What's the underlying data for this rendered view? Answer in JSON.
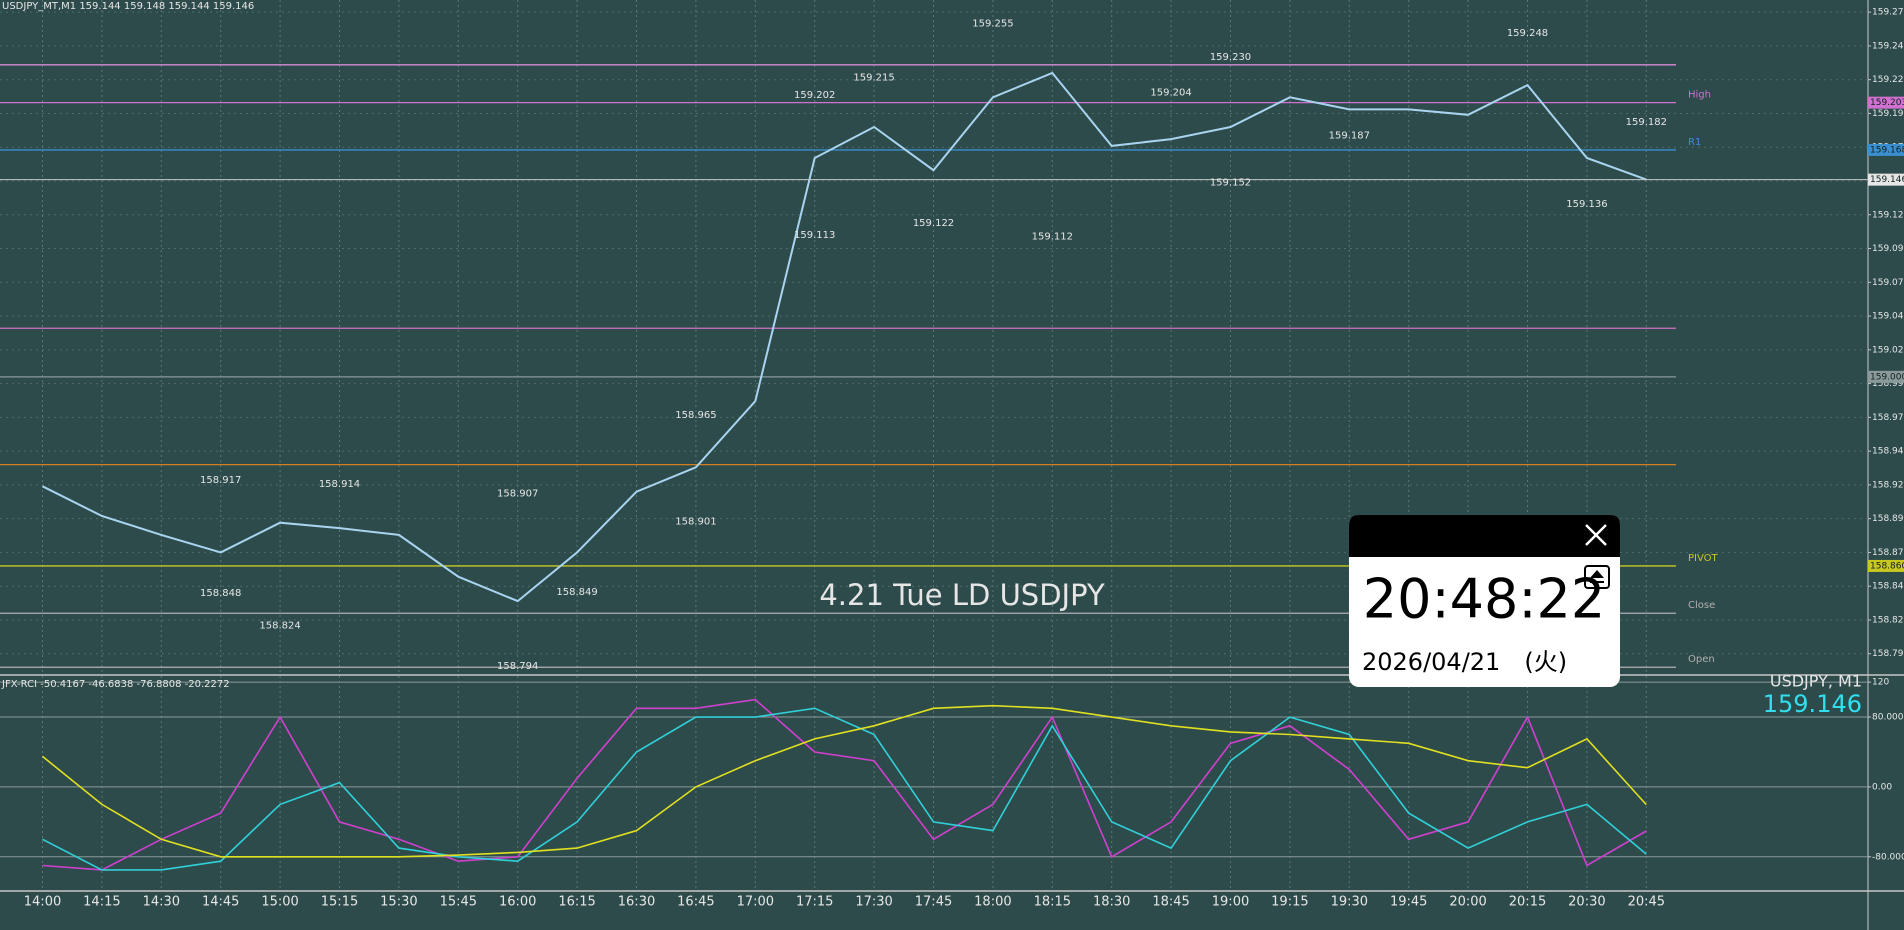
{
  "chart_data": [
    {
      "type": "line",
      "title": "USDJPY_MT,M1  159.144 159.148 159.144 159.146",
      "categories": [
        "14:00",
        "14:15",
        "14:30",
        "14:45",
        "15:00",
        "15:15",
        "15:30",
        "15:45",
        "16:00",
        "16:15",
        "16:30",
        "16:45",
        "17:00",
        "17:15",
        "17:30",
        "17:45",
        "18:00",
        "18:15",
        "18:30",
        "18:45",
        "19:00",
        "19:15",
        "19:30",
        "19:45",
        "20:00",
        "20:15",
        "20:30",
        "20:45"
      ],
      "values": [
        158.919,
        158.897,
        158.883,
        158.87,
        158.892,
        158.888,
        158.883,
        158.852,
        158.834,
        158.87,
        158.915,
        158.933,
        158.982,
        159.162,
        159.185,
        159.153,
        159.207,
        159.225,
        159.171,
        159.176,
        159.185,
        159.207,
        159.198,
        159.198,
        159.194,
        159.216,
        159.162,
        159.146
      ],
      "color": "#a8d4f0",
      "ylim": [
        158.78,
        159.279
      ],
      "yticks": [
        {
          "value": 159.27,
          "label": "159.270"
        },
        159.245,
        {
          "value": 159.22,
          "label": "159.220"
        },
        159.195,
        {
          "value": 159.17,
          "label": "159.170"
        },
        159.145,
        {
          "value": 159.12,
          "label": "159.120"
        },
        159.095,
        {
          "value": 159.07,
          "label": "159.070"
        },
        159.045,
        {
          "value": 159.02,
          "label": "159.020"
        },
        158.995,
        {
          "value": 158.97,
          "label": "158.970"
        },
        158.945,
        {
          "value": 158.92,
          "label": "158.920"
        },
        158.895,
        {
          "value": 158.87,
          "label": "158.870"
        },
        158.845,
        {
          "value": 158.82,
          "label": "158.820"
        },
        158.795
      ],
      "grid": true,
      "annotations": [
        {
          "x": "14:45",
          "value": 158.848
        },
        {
          "x": "14:45",
          "value": 158.917
        },
        {
          "x": "15:00",
          "value": 158.824
        },
        {
          "x": "15:15",
          "value": 158.914
        },
        {
          "x": "16:00",
          "value": 158.794
        },
        {
          "x": "16:00",
          "value": 158.907
        },
        {
          "x": "16:15",
          "value": 158.849
        },
        {
          "x": "16:45",
          "value": 158.965
        },
        {
          "x": "16:45",
          "value": 158.901
        },
        {
          "x": "17:15",
          "value": 159.202
        },
        {
          "x": "17:30",
          "value": 159.215
        },
        {
          "x": "17:15",
          "value": 159.113
        },
        {
          "x": "17:45",
          "value": 159.122
        },
        {
          "x": "18:00",
          "value": 159.255
        },
        {
          "x": "18:15",
          "value": 159.112
        },
        {
          "x": "18:45",
          "value": 159.204
        },
        {
          "x": "19:00",
          "value": 159.23,
          "label": "159.230"
        },
        {
          "x": "19:00",
          "value": 159.152
        },
        {
          "x": "19:30",
          "value": 159.187
        },
        {
          "x": "20:15",
          "value": 159.248
        },
        {
          "x": "20:30",
          "value": 159.136
        },
        {
          "x": "20:45",
          "value": 159.182
        }
      ],
      "levels": [
        {
          "value": 159.231,
          "color": "#d88ad8"
        },
        {
          "name": "High",
          "value": 159.203,
          "color": "#d070d0"
        },
        {
          "name": "R1",
          "value": 159.168,
          "color": "#3a8fd0"
        },
        {
          "value": 159.036,
          "color": "#d070c0"
        },
        {
          "value": 159.0,
          "label": "159.000",
          "color": "#8a9a9a"
        },
        {
          "value": 158.935,
          "color": "#d08020"
        },
        {
          "name": "PIVOT",
          "value": 158.86,
          "label": "158.860",
          "color": "#c8c820"
        },
        {
          "name": "Close",
          "value": 158.825,
          "color": "#b0b0b0"
        },
        {
          "name": "Open",
          "value": 158.785,
          "color": "#b0b0b0"
        }
      ]
    },
    {
      "type": "line",
      "title": "JFX-RCI -50.4167 -46.6838 -76.8808 -20.2272",
      "ylim": [
        -118,
        127
      ],
      "yticks": [
        120,
        {
          "value": 80,
          "label": "80.0000"
        },
        {
          "value": 0,
          "label": "0.00"
        },
        {
          "value": -80,
          "label": "-80.0000"
        }
      ],
      "series": [
        {
          "color": "#d040d0",
          "values": [
            -90,
            -95,
            -60,
            -30,
            80,
            -40,
            -60,
            -85,
            -80,
            10,
            90,
            90,
            100,
            40,
            30,
            -60,
            -20,
            80,
            -80,
            -40,
            50,
            70,
            20,
            -60,
            -40,
            80,
            -90,
            -50.4167
          ]
        },
        {
          "color": "#30d0d8",
          "values": [
            -60,
            -95,
            -95,
            -85,
            -20,
            5,
            -70,
            -80,
            -85,
            -40,
            40,
            80,
            80,
            90,
            60,
            -40,
            -50,
            70,
            -40,
            -70,
            30,
            80,
            60,
            -30,
            -70,
            -40,
            -20,
            -76.8808
          ]
        },
        {
          "color": "#e0e020",
          "values": [
            35,
            -20,
            -60,
            -80,
            -80,
            -80,
            -80,
            -78,
            -75,
            -70,
            -50,
            0,
            30,
            55,
            70,
            90,
            93,
            90,
            80,
            70,
            63,
            60,
            55,
            50,
            30,
            22,
            55,
            -20.2272
          ]
        }
      ]
    }
  ],
  "panel": {
    "symbol": "USDJPY, M1",
    "caption": "4.21 Tue LD USDJPY"
  },
  "clock": {
    "time": "20:48:22",
    "date": "2026/04/21　(火)"
  }
}
